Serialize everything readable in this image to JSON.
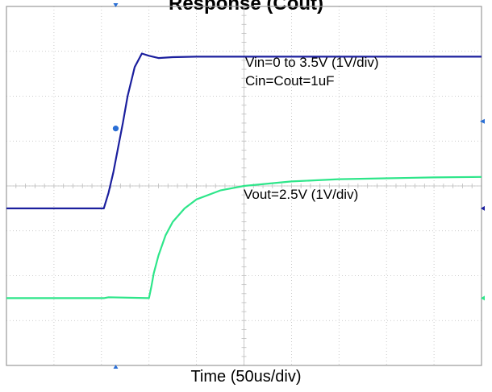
{
  "chart_data": {
    "type": "line",
    "title": "Response (Cout)",
    "xlabel": "Time (50us/div)",
    "ylabel": "",
    "divisions": {
      "x": 10,
      "y": 8
    },
    "grid": true,
    "colors": {
      "vin": "#1b1f9e",
      "vout": "#2ee68a",
      "frame": "#9a9a9a",
      "grid": "#bdbdbd"
    },
    "series": [
      {
        "id": "vin",
        "x": [
          0,
          2.05,
          2.15,
          2.25,
          2.35,
          2.45,
          2.55,
          2.7,
          2.85,
          3.0,
          3.2,
          3.5,
          4.0,
          5.0,
          10.0
        ],
        "y": [
          3.5,
          3.5,
          3.85,
          4.3,
          4.85,
          5.4,
          6.0,
          6.65,
          6.95,
          6.9,
          6.85,
          6.87,
          6.88,
          6.88,
          6.88
        ]
      },
      {
        "id": "vout",
        "x": [
          0,
          2.05,
          2.15,
          3.0,
          3.05,
          3.1,
          3.2,
          3.35,
          3.5,
          3.75,
          4.0,
          4.5,
          5.0,
          6.0,
          7.0,
          8.0,
          9.0,
          10.0
        ],
        "y": [
          1.5,
          1.5,
          1.52,
          1.5,
          1.75,
          2.05,
          2.45,
          2.9,
          3.2,
          3.5,
          3.7,
          3.9,
          4.0,
          4.1,
          4.15,
          4.17,
          4.19,
          4.2
        ]
      }
    ],
    "annotations": [
      {
        "text": "Vin=0 to 3.5V (1V/div)"
      },
      {
        "text": "Cin=Cout=1uF"
      },
      {
        "text": "Vout=2.5V (1V/div)"
      }
    ]
  }
}
